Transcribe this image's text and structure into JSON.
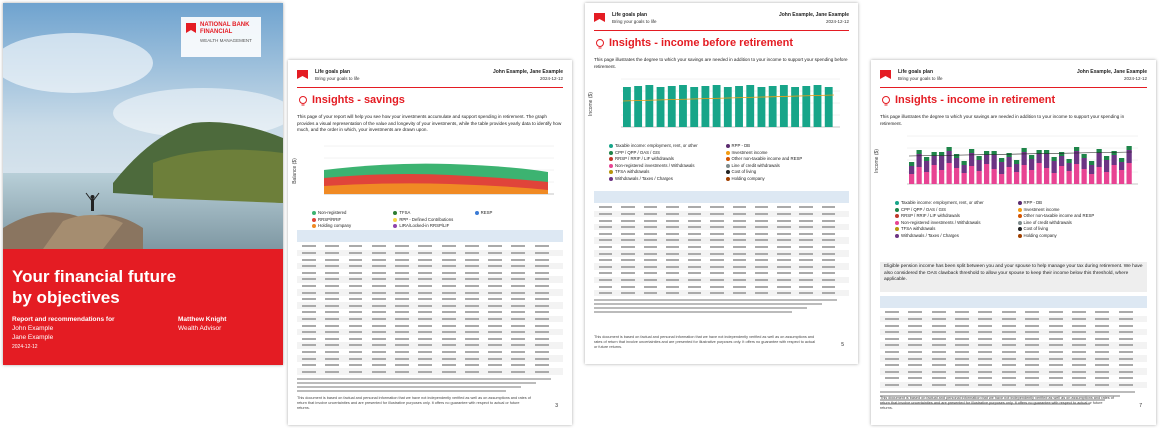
{
  "cover": {
    "logo": [
      "NATIONAL BANK",
      "FINANCIAL"
    ],
    "logo_sub": "WEALTH MANAGEMENT",
    "title": [
      "Your financial future",
      "by objectives"
    ],
    "subtitle": "Report and recommendations for",
    "clients": [
      "John Example",
      "Jane Example"
    ],
    "date": "2024-12-12",
    "advisor": "Matthew Knight",
    "advisor_role": "Wealth Advisor"
  },
  "pages": [
    {
      "header": {
        "plan": "Life goals plan",
        "tagline": "Bring your goals to life",
        "clients": "John Example, Jane Example",
        "date": "2024-12-12"
      },
      "title": "Insights - savings",
      "intro": "This page of your report will help you see how your investments accumulate and support spending in retirement. The graph provides a visual representation of the value and longevity of your investments, while the table provides yearly data to identify how much, and the order in which, your investments are drawn upon.",
      "y_axis": "Balance ($)",
      "legend": [
        "Non-registered",
        "RRSP/RRIF",
        "Holding company",
        "TFSA",
        "RPP - Defined Contributions",
        "LIRA/Locked-in RRSP/LIF",
        "RESP"
      ],
      "disclaimer": "This document is based on factual and personal information that we have not independently verified as well as on assumptions and rates of return that involve uncertainties and are presented for illustrative purposes only. It offers no guarantee with respect to actual or future returns.",
      "page_number": 3
    },
    {
      "header": {
        "plan": "Life goals plan",
        "tagline": "Bring your goals to life",
        "clients": "John Example, Jane Example",
        "date": "2024-12-12"
      },
      "title": "Insights - income before retirement",
      "intro": "This page illustrates the degree to which your savings are needed in addition to your income to support your spending before retirement.",
      "y_axis": "Income ($)",
      "legend": [
        "Taxable income: employment, rent, or other",
        "CPP / QPP / OAS / GIS",
        "RRSP / RRIF / LIF withdrawals",
        "Non-registered investments / Withdrawals",
        "TFSA withdrawals",
        "Withdrawals / Taxes / Charges",
        "RPP - DB",
        "Investment income",
        "Other non-taxable income and RESP",
        "Line of credit withdrawals",
        "Cost of living",
        "Holding company"
      ],
      "disclaimer": "This document is based on factual and personal information that we have not independently verified as well as on assumptions and rates of return that involve uncertainties and are presented for illustrative purposes only. It offers no guarantee with respect to actual or future returns.",
      "page_number": 5
    },
    {
      "header": {
        "plan": "Life goals plan",
        "tagline": "Bring your goals to life",
        "clients": "John Example, Jane Example",
        "date": "2024-12-12"
      },
      "title": "Insights - income in retirement",
      "intro": "This page illustrates the degree to which your savings are needed in addition to your income to support your spending in retirement.",
      "y_axis": "Income ($)",
      "legend": [
        "Taxable income: employment, rent, or other",
        "CPP / QPP / OAS / GIS",
        "RRSP / RRIF / LIF withdrawals",
        "Non-registered investments / Withdrawals",
        "TFSA withdrawals",
        "Withdrawals / Taxes / Charges",
        "RPP - DB",
        "Investment income",
        "Other non-taxable income and RESP",
        "Line of credit withdrawals",
        "Cost of living",
        "Holding company"
      ],
      "note": "Eligible pension income has been split between you and your spouse to help manage your tax during retirement. We have also considered the OAS clawback threshold to allow your spouse to keep their income below this threshold, where applicable.",
      "disclaimer": "This document is based on factual and personal information that we have not independently verified as well as on assumptions and rates of return that involve uncertainties and are presented for illustrative purposes only. It offers no guarantee with respect to actual or future returns.",
      "page_number": 7
    }
  ]
}
